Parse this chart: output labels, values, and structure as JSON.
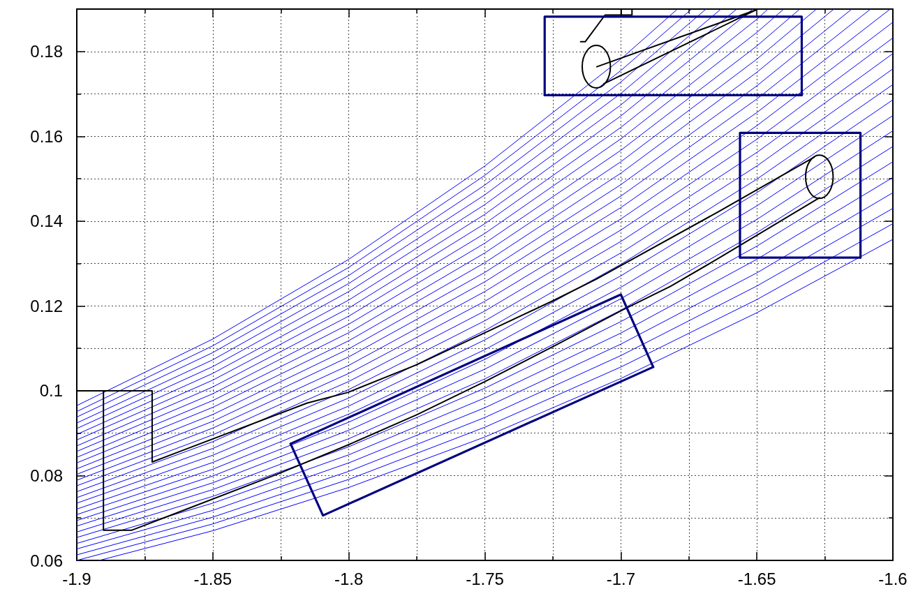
{
  "chart_data": {
    "type": "line",
    "xlim": [
      -1.9,
      -1.6
    ],
    "ylim": [
      0.06,
      0.19
    ],
    "xticks": [
      -1.9,
      {
        "value": -1.875,
        "label": null
      },
      -1.85,
      {
        "value": -1.825,
        "label": null
      },
      -1.8,
      {
        "value": -1.775,
        "label": null
      },
      -1.75,
      {
        "value": -1.725,
        "label": null
      },
      -1.7,
      {
        "value": -1.675,
        "label": null
      },
      -1.65,
      {
        "value": -1.625,
        "label": null
      },
      -1.6
    ],
    "yticks": [
      0.06,
      {
        "value": 0.07,
        "label": null
      },
      0.08,
      {
        "value": 0.09,
        "label": null
      },
      0.1,
      {
        "value": 0.11,
        "label": null
      },
      0.12,
      {
        "value": 0.13,
        "label": null
      },
      0.14,
      {
        "value": 0.15,
        "label": null
      },
      0.16,
      {
        "value": 0.17,
        "label": null
      },
      0.18
    ],
    "grid": true,
    "marker": "none",
    "line_style": "solid",
    "series": [
      {
        "color": "#0000ff",
        "x": [
          -1.8917,
          -1.85,
          -1.8,
          -1.75,
          -1.7,
          -1.65,
          -1.6
        ],
        "values": [
          0.06,
          0.067,
          0.0772,
          0.0891,
          0.1029,
          0.1184,
          0.1357
        ]
      },
      {
        "color": "#0000ff",
        "x": [
          -1.9,
          -1.85,
          -1.8,
          -1.75,
          -1.7,
          -1.65,
          -1.6
        ],
        "values": [
          0.06,
          0.0686,
          0.0791,
          0.0914,
          0.1056,
          0.1215,
          0.1394
        ]
      },
      {
        "color": "#0000ff",
        "x": [
          -1.9,
          -1.85,
          -1.8,
          -1.75,
          -1.7,
          -1.65,
          -1.6
        ],
        "values": [
          0.0613,
          0.0702,
          0.081,
          0.0937,
          0.1083,
          0.1247,
          0.143
        ]
      },
      {
        "color": "#0000ff",
        "x": [
          -1.9,
          -1.85,
          -1.8,
          -1.75,
          -1.7,
          -1.65,
          -1.6
        ],
        "values": [
          0.0627,
          0.0718,
          0.083,
          0.096,
          0.111,
          0.1278,
          0.1467
        ]
      },
      {
        "color": "#0000ff",
        "x": [
          -1.9,
          -1.85,
          -1.8,
          -1.75,
          -1.7,
          -1.65,
          -1.6
        ],
        "values": [
          0.064,
          0.0735,
          0.0849,
          0.0983,
          0.1136,
          0.131,
          0.1503
        ]
      },
      {
        "color": "#0000ff",
        "x": [
          -1.9,
          -1.85,
          -1.8,
          -1.75,
          -1.7,
          -1.65,
          -1.6
        ],
        "values": [
          0.0654,
          0.0751,
          0.0868,
          0.1006,
          0.1163,
          0.1341,
          0.154
        ]
      },
      {
        "color": "#0000ff",
        "x": [
          -1.9,
          -1.85,
          -1.8,
          -1.75,
          -1.7,
          -1.65,
          -1.6
        ],
        "values": [
          0.0667,
          0.0767,
          0.0887,
          0.1028,
          0.119,
          0.1373,
          0.1576
        ]
      },
      {
        "color": "#0000ff",
        "x": [
          -1.9,
          -1.85,
          -1.8,
          -1.75,
          -1.7,
          -1.65,
          -1.6
        ],
        "values": [
          0.0681,
          0.0783,
          0.0907,
          0.1051,
          0.1217,
          0.1404,
          0.1613
        ]
      },
      {
        "color": "#0000ff",
        "x": [
          -1.9,
          -1.85,
          -1.8,
          -1.75,
          -1.7,
          -1.65,
          -1.6
        ],
        "values": [
          0.0694,
          0.0799,
          0.0926,
          0.1074,
          0.1244,
          0.1436,
          0.1649
        ]
      },
      {
        "color": "#0000ff",
        "x": [
          -1.9,
          -1.85,
          -1.8,
          -1.75,
          -1.7,
          -1.65,
          -1.6
        ],
        "values": [
          0.0708,
          0.0815,
          0.0945,
          0.1097,
          0.1271,
          0.1467,
          0.1686
        ]
      },
      {
        "color": "#0000ff",
        "x": [
          -1.9,
          -1.85,
          -1.8,
          -1.75,
          -1.7,
          -1.65,
          -1.6
        ],
        "values": [
          0.0721,
          0.0831,
          0.0964,
          0.112,
          0.1298,
          0.1499,
          0.1722
        ]
      },
      {
        "color": "#0000ff",
        "x": [
          -1.9,
          -1.85,
          -1.8,
          -1.75,
          -1.7,
          -1.65,
          -1.6
        ],
        "values": [
          0.0735,
          0.0848,
          0.0983,
          0.1142,
          0.1325,
          0.153,
          0.1759
        ]
      },
      {
        "color": "#0000ff",
        "x": [
          -1.9,
          -1.85,
          -1.8,
          -1.75,
          -1.7,
          -1.65,
          -1.6
        ],
        "values": [
          0.0748,
          0.0864,
          0.1003,
          0.1165,
          0.1352,
          0.1562,
          0.1795
        ]
      },
      {
        "color": "#0000ff",
        "x": [
          -1.9,
          -1.85,
          -1.8,
          -1.75,
          -1.7,
          -1.65,
          -1.6
        ],
        "values": [
          0.0762,
          0.088,
          0.1022,
          0.1188,
          0.1379,
          0.1593,
          0.1832
        ]
      },
      {
        "color": "#0000ff",
        "x": [
          -1.9,
          -1.85,
          -1.8,
          -1.75,
          -1.7,
          -1.65,
          -1.6
        ],
        "values": [
          0.0776,
          0.0896,
          0.1041,
          0.1211,
          0.1405,
          0.1625,
          0.1869
        ]
      },
      {
        "color": "#0000ff",
        "x": [
          -1.9,
          -1.85,
          -1.8,
          -1.75,
          -1.7,
          -1.65,
          -1.601
        ],
        "values": [
          0.0789,
          0.0912,
          0.106,
          0.1234,
          0.1432,
          0.1656,
          0.19
        ]
      },
      {
        "color": "#0000ff",
        "x": [
          -1.9,
          -1.85,
          -1.8,
          -1.75,
          -1.7,
          -1.65,
          -1.6082
        ],
        "values": [
          0.0803,
          0.0928,
          0.108,
          0.1257,
          0.1459,
          0.1688,
          0.19
        ]
      },
      {
        "color": "#0000ff",
        "x": [
          -1.9,
          -1.85,
          -1.8,
          -1.75,
          -1.7,
          -1.65,
          -1.6151
        ],
        "values": [
          0.0816,
          0.0944,
          0.1099,
          0.1279,
          0.1486,
          0.1719,
          0.19
        ]
      },
      {
        "color": "#0000ff",
        "x": [
          -1.9,
          -1.85,
          -1.8,
          -1.75,
          -1.7,
          -1.65,
          -1.6217
        ],
        "values": [
          0.083,
          0.0961,
          0.1118,
          0.1302,
          0.1513,
          0.1751,
          0.19
        ]
      },
      {
        "color": "#0000ff",
        "x": [
          -1.9,
          -1.85,
          -1.8,
          -1.75,
          -1.7,
          -1.65,
          -1.6281
        ],
        "values": [
          0.0843,
          0.0977,
          0.1137,
          0.1325,
          0.154,
          0.1782,
          0.19
        ]
      },
      {
        "color": "#0000ff",
        "x": [
          -1.9,
          -1.85,
          -1.8,
          -1.75,
          -1.7,
          -1.65,
          -1.6342
        ],
        "values": [
          0.0857,
          0.0993,
          0.1157,
          0.1348,
          0.1567,
          0.1813,
          0.19
        ]
      },
      {
        "color": "#0000ff",
        "x": [
          -1.9,
          -1.85,
          -1.8,
          -1.75,
          -1.7,
          -1.65,
          -1.6401
        ],
        "values": [
          0.087,
          0.1009,
          0.1176,
          0.1371,
          0.1594,
          0.1845,
          0.19
        ]
      },
      {
        "color": "#0000ff",
        "x": [
          -1.9,
          -1.85,
          -1.8,
          -1.75,
          -1.7,
          -1.65,
          -1.6459
        ],
        "values": [
          0.0884,
          0.1025,
          0.1195,
          0.1394,
          0.1621,
          0.1876,
          0.19
        ]
      },
      {
        "color": "#0000ff",
        "x": [
          -1.9,
          -1.85,
          -1.8,
          -1.75,
          -1.7,
          -1.6515
        ],
        "values": [
          0.0897,
          0.1041,
          0.1214,
          0.1416,
          0.1648,
          0.19
        ]
      },
      {
        "color": "#0000ff",
        "x": [
          -1.9,
          -1.85,
          -1.8,
          -1.75,
          -1.7,
          -1.6574
        ],
        "values": [
          0.0911,
          0.1057,
          0.1234,
          0.1439,
          0.1674,
          0.19
        ]
      },
      {
        "color": "#0000ff",
        "x": [
          -1.9,
          -1.85,
          -1.8,
          -1.75,
          -1.7,
          -1.6632
        ],
        "values": [
          0.0924,
          0.1073,
          0.1253,
          0.1462,
          0.1701,
          0.19
        ]
      },
      {
        "color": "#0000ff",
        "x": [
          -1.9,
          -1.85,
          -1.8,
          -1.75,
          -1.7,
          -1.6687
        ],
        "values": [
          0.0938,
          0.109,
          0.1272,
          0.1485,
          0.1728,
          0.19
        ]
      },
      {
        "color": "#0000ff",
        "x": [
          -1.9,
          -1.85,
          -1.8,
          -1.75,
          -1.7,
          -1.674
        ],
        "values": [
          0.0951,
          0.1106,
          0.1291,
          0.1508,
          0.1755,
          0.19
        ]
      },
      {
        "color": "#0000ff",
        "x": [
          -1.9,
          -1.85,
          -1.8,
          -1.75,
          -1.7,
          -1.6792
        ],
        "values": [
          0.0965,
          0.1122,
          0.131,
          0.153,
          0.1782,
          0.19
        ]
      },
      {
        "color": "#000000",
        "x": [
          -1.9,
          -1.8723,
          -1.8723,
          -1.8153,
          -1.8004,
          -1.7752,
          -1.7499,
          -1.7247,
          -1.7091,
          -1.6639,
          -1.6289
        ],
        "values": [
          0.1,
          0.1,
          0.0832,
          0.0971,
          0.0996,
          0.1061,
          0.1137,
          0.1213,
          0.1263,
          0.1423,
          0.1551
        ]
      },
      {
        "color": "#000000",
        "x": [
          -1.8902,
          -1.8902,
          -1.8799,
          -1.8256,
          -1.8004,
          -1.7752,
          -1.7499,
          -1.7247,
          -1.6995,
          -1.6818,
          -1.6639,
          -1.627
        ],
        "values": [
          0.1,
          0.0671,
          0.0671,
          0.0805,
          0.0872,
          0.0943,
          0.1022,
          0.1105,
          0.119,
          0.1246,
          0.1313,
          0.1455
        ]
      },
      {
        "color": "#000000",
        "x": [
          -1.7088,
          -1.6503
        ],
        "values": [
          0.1764,
          0.1898
        ]
      },
      {
        "color": "#000000",
        "x": [
          -1.7062,
          -1.6503
        ],
        "values": [
          0.1724,
          0.1898
        ]
      },
      {
        "color": "#000000",
        "x": [
          -1.7148,
          -1.7131,
          -1.7058,
          -1.6959,
          -1.6959
        ],
        "values": [
          0.1823,
          0.1823,
          0.1886,
          0.1886,
          0.19
        ]
      },
      {
        "color": "#000000",
        "x": [
          -1.6999,
          -1.6999
        ],
        "values": [
          0.1886,
          0.19
        ]
      },
      {
        "color": "#000080",
        "x": [
          -1.728,
          -1.728,
          -1.6335,
          -1.6335
        ],
        "values": [
          0.1697,
          0.1882,
          0.1882,
          0.1697
        ]
      },
      {
        "color": "#000080",
        "x": [
          -1.728,
          -1.6335
        ],
        "values": [
          0.1697,
          0.1697
        ]
      },
      {
        "color": "#000080",
        "x": [
          -1.6562,
          -1.6562,
          -1.6119,
          -1.6119
        ],
        "values": [
          0.1314,
          0.1608,
          0.1608,
          0.1314
        ]
      },
      {
        "color": "#000080",
        "x": [
          -1.6562,
          -1.6119
        ],
        "values": [
          0.1314,
          0.1314
        ]
      },
      {
        "color": "#000080",
        "x": [
          -1.8214,
          -1.7,
          -1.6881
        ],
        "values": [
          0.0875,
          0.1227,
          0.1056
        ]
      },
      {
        "color": "#000080",
        "x": [
          -1.8214,
          -1.8095,
          -1.6881
        ],
        "values": [
          0.0875,
          0.0706,
          0.1056
        ]
      }
    ]
  }
}
